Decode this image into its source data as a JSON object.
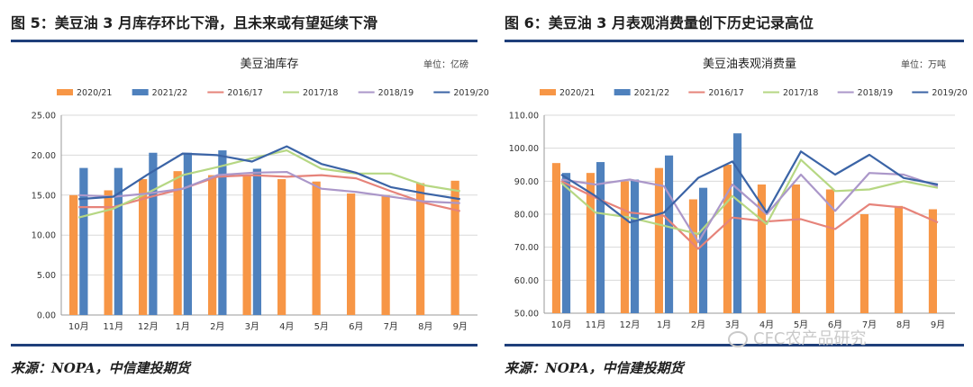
{
  "left": {
    "figure_title": "图 5：美豆油 3 月库存环比下滑，且未来或有望延续下滑",
    "source": "来源：NOPA，中信建投期货"
  },
  "right": {
    "figure_title": "图 6：美豆油 3 月表观消费量创下历史记录高位",
    "source": "来源：NOPA，中信建投期货"
  },
  "watermark": "CFC农产品研究",
  "chart_data": [
    {
      "type": "bar+line",
      "title": "美豆油库存",
      "unit": "单位：亿磅",
      "categories": [
        "10月",
        "11月",
        "12月",
        "1月",
        "2月",
        "3月",
        "4月",
        "5月",
        "6月",
        "7月",
        "8月",
        "9月"
      ],
      "ylim": [
        0,
        25
      ],
      "yticks": [
        "0.00",
        "5.00",
        "10.00",
        "15.00",
        "20.00",
        "25.00"
      ],
      "grid": true,
      "legend_position": "top",
      "bar_series": [
        {
          "name": "2020/21",
          "color": "#f79646",
          "values": [
            15.0,
            15.6,
            17.0,
            18.0,
            17.5,
            17.5,
            17.0,
            16.7,
            15.2,
            15.0,
            16.5,
            16.8
          ]
        },
        {
          "name": "2021/22",
          "color": "#4f81bd",
          "values": [
            18.4,
            18.4,
            20.3,
            20.3,
            20.6,
            18.3,
            null,
            null,
            null,
            null,
            null,
            null
          ]
        }
      ],
      "line_series": [
        {
          "name": "2016/17",
          "color": "#e6837a",
          "values": [
            13.5,
            13.5,
            14.7,
            15.8,
            17.3,
            17.5,
            17.3,
            17.5,
            17.1,
            15.5,
            14.0,
            13.0
          ]
        },
        {
          "name": "2017/18",
          "color": "#b6d783",
          "values": [
            12.2,
            13.3,
            15.3,
            17.5,
            18.5,
            19.6,
            20.6,
            18.3,
            17.7,
            17.7,
            16.2,
            15.5
          ]
        },
        {
          "name": "2018/19",
          "color": "#ab97c9",
          "values": [
            15.0,
            14.8,
            15.2,
            15.8,
            17.5,
            17.8,
            17.9,
            15.8,
            15.4,
            14.8,
            14.2,
            14.0
          ]
        },
        {
          "name": "2019/20",
          "color": "#3b64a6",
          "values": [
            14.5,
            14.8,
            17.6,
            20.2,
            20.0,
            19.2,
            21.1,
            18.9,
            17.8,
            16.0,
            15.2,
            14.5
          ]
        }
      ]
    },
    {
      "type": "bar+line",
      "title": "美豆油表观消费量",
      "unit": "单位：万吨",
      "categories": [
        "10月",
        "11月",
        "12月",
        "1月",
        "2月",
        "3月",
        "4月",
        "5月",
        "6月",
        "7月",
        "8月",
        "9月"
      ],
      "ylim": [
        50,
        110
      ],
      "yticks": [
        "50.00",
        "60.00",
        "70.00",
        "80.00",
        "90.00",
        "100.00",
        "110.00"
      ],
      "grid": true,
      "legend_position": "top",
      "bar_series": [
        {
          "name": "2020/21",
          "color": "#f79646",
          "values": [
            95.5,
            92.5,
            90.0,
            94.0,
            84.5,
            95.0,
            89.0,
            89.0,
            87.5,
            80.0,
            82.5,
            81.5
          ]
        },
        {
          "name": "2021/22",
          "color": "#4f81bd",
          "values": [
            92.5,
            95.8,
            90.5,
            97.8,
            88.0,
            104.5,
            null,
            null,
            null,
            null,
            null,
            null
          ]
        }
      ],
      "line_series": [
        {
          "name": "2016/17",
          "color": "#e6837a",
          "values": [
            90.0,
            85.0,
            80.5,
            79.5,
            69.5,
            79.0,
            77.8,
            78.5,
            75.5,
            83.0,
            82.0,
            77.5
          ]
        },
        {
          "name": "2017/18",
          "color": "#b6d783",
          "values": [
            89.5,
            80.5,
            79.0,
            76.5,
            74.0,
            85.5,
            77.0,
            96.5,
            87.0,
            87.5,
            90.0,
            88.0
          ]
        },
        {
          "name": "2018/19",
          "color": "#ab97c9",
          "values": [
            90.5,
            89.0,
            90.5,
            88.5,
            71.5,
            89.0,
            80.0,
            92.0,
            81.0,
            92.5,
            92.0,
            88.5
          ]
        },
        {
          "name": "2019/20",
          "color": "#3b64a6",
          "values": [
            92.0,
            85.5,
            77.5,
            80.5,
            91.0,
            96.0,
            80.5,
            99.0,
            92.0,
            98.0,
            91.0,
            89.0
          ]
        }
      ]
    }
  ]
}
